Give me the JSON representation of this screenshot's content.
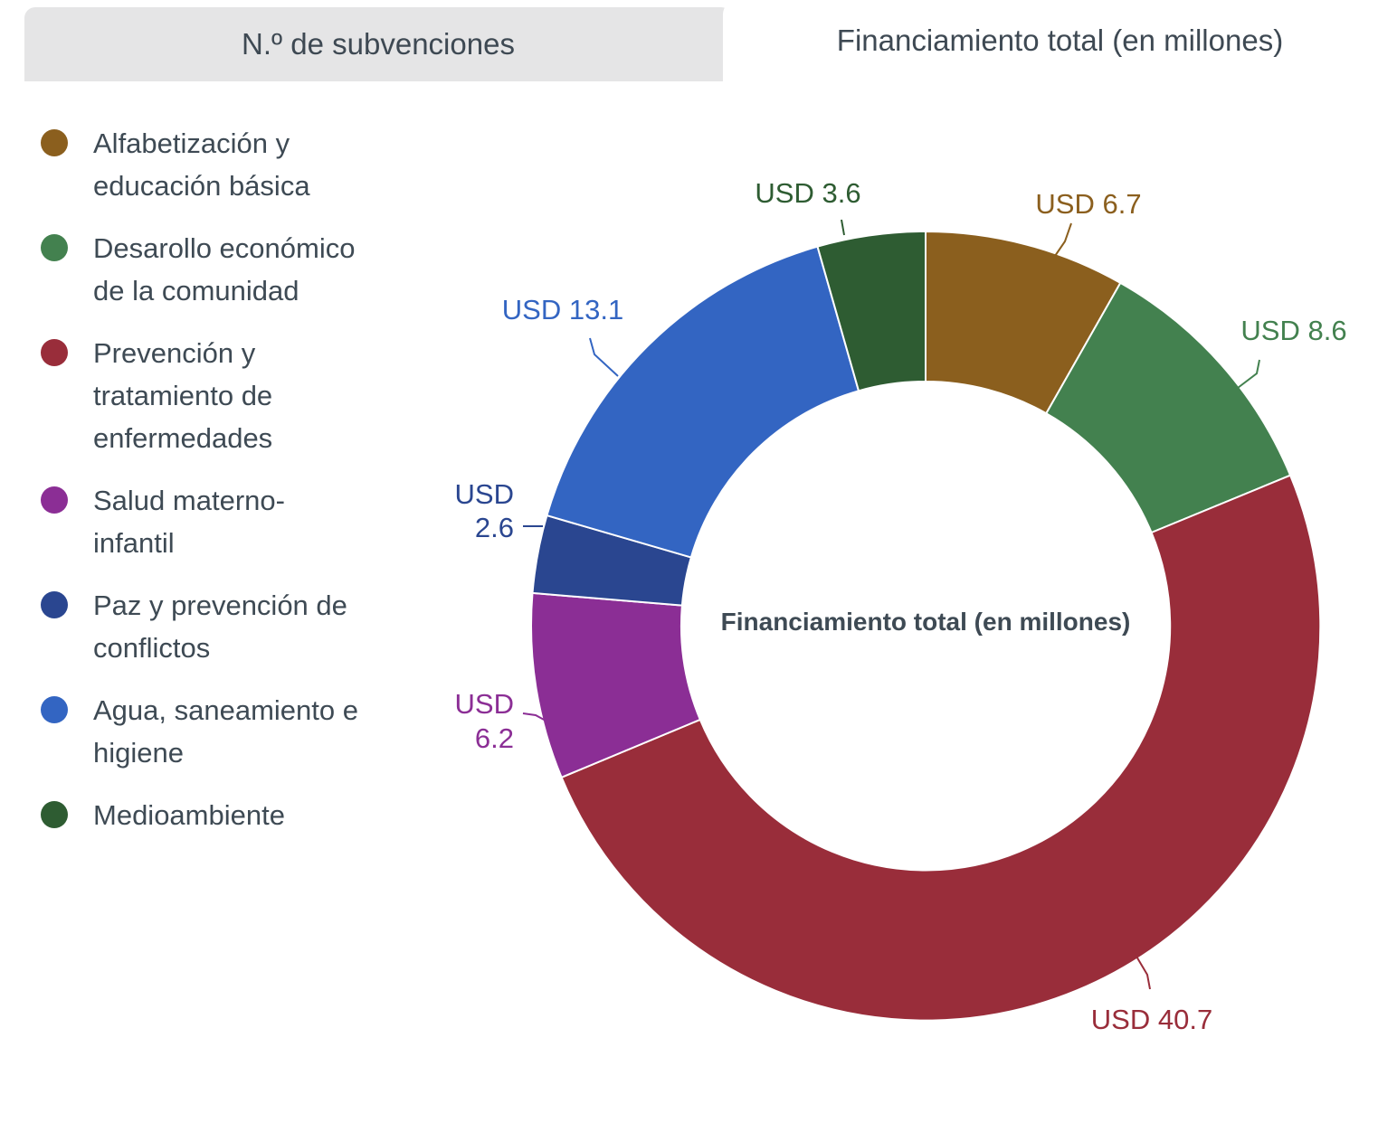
{
  "tabs": [
    {
      "label": "N.º de subvenciones",
      "active": false
    },
    {
      "label": "Financiamiento total (en millones)",
      "active": true
    }
  ],
  "chart_data": {
    "type": "pie",
    "donut": true,
    "title": "Financiamiento total (en millones)",
    "center_label": "Financiamiento total (en millones)",
    "legend_position": "left",
    "currency": "USD",
    "slices": [
      {
        "name": "Alfabetización y educación básica",
        "legend_label": "Alfabetización y\neducación básica",
        "value": 6.7,
        "display_value": "USD 6.7",
        "color": "#8b5f1e"
      },
      {
        "name": "Desarollo económico de la comunidad",
        "legend_label": "Desarollo económico\nde la comunidad",
        "value": 8.6,
        "display_value": "USD 8.6",
        "color": "#43814f"
      },
      {
        "name": "Prevención y tratamiento de enfermedades",
        "legend_label": "Prevención y\ntratamiento de\nenfermedades",
        "value": 40.7,
        "display_value": "USD 40.7",
        "color": "#992d3a"
      },
      {
        "name": "Salud materno-infantil",
        "legend_label": "Salud materno-\ninfantil",
        "value": 6.2,
        "display_value": "USD 6.2",
        "color": "#8b2e95"
      },
      {
        "name": "Paz y prevención de conflictos",
        "legend_label": "Paz y prevención de\nconflictos",
        "value": 2.6,
        "display_value": "USD 2.6",
        "color": "#2a4690"
      },
      {
        "name": "Agua, saneamiento e higiene",
        "legend_label": "Agua, saneamiento e\nhigiene",
        "value": 13.1,
        "display_value": "USD 13.1",
        "color": "#3365c2"
      },
      {
        "name": "Medioambiente",
        "legend_label": "Medioambiente",
        "value": 3.6,
        "display_value": "USD 3.6",
        "color": "#2e5c32"
      }
    ]
  }
}
